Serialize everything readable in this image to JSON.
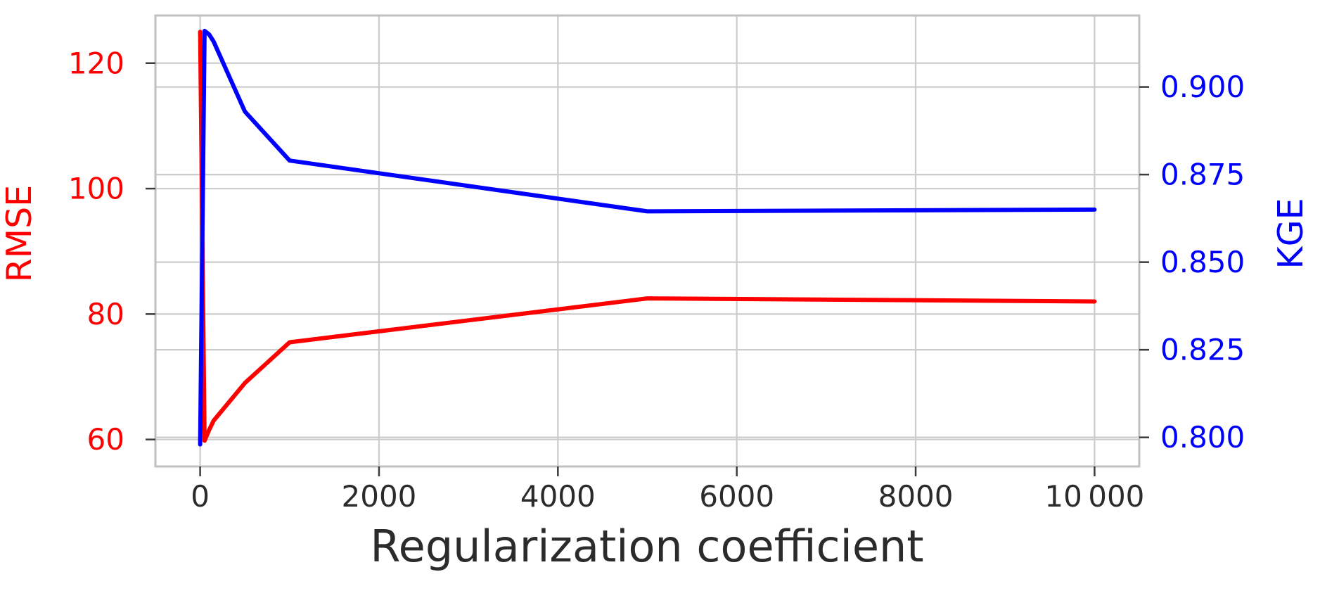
{
  "chart_data": {
    "type": "line",
    "title": "",
    "xlabel": "Regularization coefficient",
    "ylabel_left": "RMSE",
    "ylabel_right": "KGE",
    "x": [
      0,
      50,
      100,
      150,
      500,
      1000,
      5000,
      10000
    ],
    "series": [
      {
        "name": "RMSE",
        "axis": "left",
        "color": "#ff0000",
        "values": [
          125,
          59.8,
          61.5,
          63,
          69,
          75.5,
          82.5,
          82
        ]
      },
      {
        "name": "KGE",
        "axis": "right",
        "color": "#0000ff",
        "values": [
          0.798,
          0.916,
          0.915,
          0.913,
          0.893,
          0.879,
          0.8645,
          0.865
        ]
      }
    ],
    "xlim": [
      -500,
      10500
    ],
    "ylim_left": [
      55.7,
      127.6
    ],
    "ylim_right": [
      0.7917,
      0.9204
    ],
    "x_ticks": [
      0,
      2000,
      4000,
      6000,
      8000,
      10000
    ],
    "x_tick_labels": [
      "0",
      "2000",
      "4000",
      "6000",
      "8000",
      "10 000"
    ],
    "left_ticks": [
      60,
      80,
      100,
      120
    ],
    "left_tick_labels": [
      "60",
      "80",
      "100",
      "120"
    ],
    "right_ticks": [
      0.8,
      0.825,
      0.85,
      0.875,
      0.9
    ],
    "right_tick_labels": [
      "0.800",
      "0.825",
      "0.850",
      "0.875",
      "0.900"
    ],
    "grid": true,
    "legend": "none",
    "colors": {
      "rmse": "#ff0000",
      "kge": "#0000ff",
      "xtick": "#2b2b2b",
      "grid": "#cccccc",
      "spine": "#c0c0c0",
      "tick": "#3c3c3c"
    }
  }
}
